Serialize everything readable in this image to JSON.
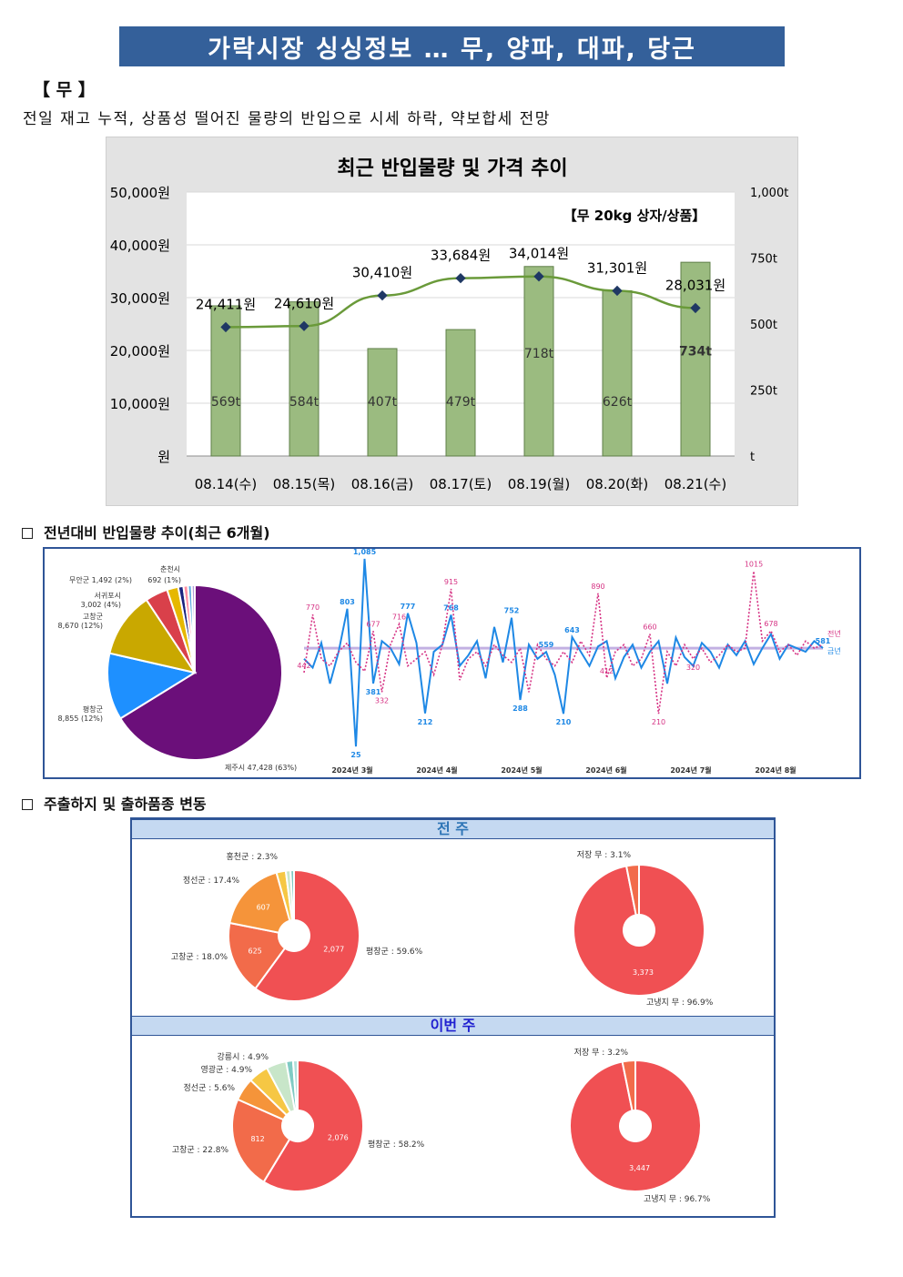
{
  "header": {
    "title": "가락시장 싱싱정보 … 무, 양파, 대파, 당근"
  },
  "section": {
    "tag": "【 무 】",
    "summary": "전일 재고 누적, 상품성 떨어진 물량의 반입으로 시세 하락, 약보합세 전망"
  },
  "chart_data": [
    {
      "type": "bar",
      "title": "최근 반입물량 및 가격 추이",
      "annotation": "【무 20kg 상자/상품】",
      "categories": [
        "08.14(수)",
        "08.15(목)",
        "08.16(금)",
        "08.17(토)",
        "08.19(월)",
        "08.20(화)",
        "08.21(수)"
      ],
      "series": [
        {
          "axis": "right",
          "type": "bar",
          "unit": "t",
          "values": [
            569,
            584,
            407,
            479,
            718,
            626,
            734
          ],
          "value_labels": [
            "569t",
            "584t",
            "407t",
            "479t",
            "718t",
            "626t",
            "734t"
          ]
        },
        {
          "axis": "left",
          "type": "line",
          "unit": "원",
          "values": [
            24411,
            24610,
            30410,
            33684,
            34014,
            31301,
            28031
          ],
          "value_labels": [
            "24,411원",
            "24,610원",
            "30,410원",
            "33,684원",
            "34,014원",
            "31,301원",
            "28,031원"
          ]
        }
      ],
      "left_axis": {
        "ylim": [
          0,
          50000
        ],
        "ticks": [
          "원",
          "10,000원",
          "20,000원",
          "30,000원",
          "40,000원",
          "50,000원"
        ]
      },
      "right_axis": {
        "ylim": [
          0,
          1000
        ],
        "ticks": [
          "t",
          "250t",
          "500t",
          "750t",
          "1,000t"
        ]
      },
      "colors": {
        "bar": "#9bbb80",
        "bar_border": "#5f7f48",
        "line": "#6a9a3a",
        "marker": "#1f3864"
      }
    },
    {
      "type": "pie",
      "slices": [
        {
          "label": "제주시 47,428 (63%)",
          "value": 47428,
          "color": "#6b0f7a"
        },
        {
          "label": "평창군 8,855 (12%)",
          "value": 8855,
          "color": "#1e90ff"
        },
        {
          "label": "고창군 8,670 (12%)",
          "value": 8670,
          "color": "#c9a800"
        },
        {
          "label": "서귀포시 3,002 (4%)",
          "value": 3002,
          "color": "#d9404a"
        },
        {
          "label": "무안군 1,492 (2%)",
          "value": 1492,
          "color": "#e6b800"
        },
        {
          "label": "692 (1%)",
          "value": 692,
          "color": "#1a237e"
        },
        {
          "label": "",
          "value": 600,
          "color": "#ff8fa3"
        },
        {
          "label": "",
          "value": 500,
          "color": "#5dade2"
        },
        {
          "label": "춘천시",
          "value": 400,
          "color": "#b39ddb"
        }
      ]
    },
    {
      "type": "line",
      "x_ticks": [
        "2024년 3월",
        "2024년 4월",
        "2024년 5월",
        "2024년 6월",
        "2024년 7월",
        "2024년 8월"
      ],
      "series": [
        {
          "name": "금년",
          "color": "#1e88e5",
          "style": "solid",
          "peak_labels": [
            "1,085",
            "803",
            "777",
            "768",
            "752",
            "559",
            "643",
            "25",
            "381",
            "212",
            "288",
            "210",
            "581"
          ],
          "values": [
            520,
            470,
            610,
            380,
            560,
            803,
            25,
            1085,
            381,
            620,
            580,
            490,
            777,
            610,
            212,
            560,
            600,
            768,
            480,
            540,
            620,
            410,
            700,
            500,
            752,
            288,
            600,
            520,
            559,
            430,
            210,
            643,
            560,
            480,
            590,
            620,
            410,
            530,
            600,
            470,
            560,
            620,
            380,
            640,
            530,
            480,
            610,
            560,
            470,
            600,
            540,
            620,
            490,
            580,
            660,
            520,
            600,
            580,
            560,
            620,
            581
          ]
        },
        {
          "name": "전년",
          "color": "#d63384",
          "style": "dotted",
          "peak_labels": [
            "770",
            "442",
            "677",
            "716",
            "915",
            "890",
            "660",
            "1015",
            "678",
            "320",
            "332",
            "412",
            "210"
          ],
          "values": [
            442,
            770,
            520,
            480,
            560,
            610,
            500,
            450,
            677,
            332,
            600,
            716,
            480,
            520,
            560,
            430,
            600,
            915,
            400,
            520,
            560,
            480,
            600,
            540,
            500,
            580,
            332,
            600,
            520,
            480,
            560,
            500,
            620,
            540,
            890,
            412,
            560,
            600,
            480,
            520,
            660,
            210,
            560,
            480,
            600,
            520,
            580,
            500,
            540,
            600,
            560,
            580,
            1015,
            620,
            678,
            560,
            600,
            540,
            620,
            580,
            600
          ]
        }
      ]
    },
    {
      "type": "pie",
      "group": "전 주",
      "chart": "origin",
      "slices": [
        {
          "label": "평창군 : 59.6%",
          "value": 2077,
          "inner": "2,077",
          "color": "#f05053"
        },
        {
          "label": "고창군 : 18.0%",
          "value": 625,
          "inner": "625",
          "color": "#f26b4a"
        },
        {
          "label": "정선군 : 17.4%",
          "value": 607,
          "inner": "607",
          "color": "#f5943a"
        },
        {
          "label": "홍천군 : 2.3%",
          "value": 80,
          "inner": "",
          "color": "#f6c744"
        },
        {
          "label": "",
          "value": 40,
          "inner": "",
          "color": "#c8e6c9"
        },
        {
          "label": "",
          "value": 30,
          "inner": "",
          "color": "#80cbc4"
        }
      ]
    },
    {
      "type": "pie",
      "group": "전 주",
      "chart": "variety",
      "slices": [
        {
          "label": "고냉지 무 : 96.9%",
          "value": 3373,
          "inner": "3,373",
          "color": "#f05053"
        },
        {
          "label": "저장 무 : 3.1%",
          "value": 108,
          "inner": "",
          "color": "#f26b4a"
        }
      ]
    },
    {
      "type": "pie",
      "group": "이번 주",
      "chart": "origin",
      "slices": [
        {
          "label": "평창군 : 58.2%",
          "value": 2076,
          "inner": "2,076",
          "color": "#f05053"
        },
        {
          "label": "고창군 : 22.8%",
          "value": 812,
          "inner": "812",
          "color": "#f26b4a"
        },
        {
          "label": "정선군 : 5.6%",
          "value": 200,
          "inner": "",
          "color": "#f5943a"
        },
        {
          "label": "영광군 : 4.9%",
          "value": 175,
          "inner": "",
          "color": "#f6c744"
        },
        {
          "label": "강릉시 : 4.9%",
          "value": 175,
          "inner": "",
          "color": "#c8e6c9"
        },
        {
          "label": "",
          "value": 60,
          "inner": "",
          "color": "#80cbc4"
        },
        {
          "label": "",
          "value": 40,
          "inner": "",
          "color": "#b2dfdb"
        }
      ]
    },
    {
      "type": "pie",
      "group": "이번 주",
      "chart": "variety",
      "slices": [
        {
          "label": "고냉지 무 : 96.7%",
          "value": 3447,
          "inner": "3,447",
          "color": "#f05053"
        },
        {
          "label": "저장 무 : 3.2%",
          "value": 114,
          "inner": "",
          "color": "#f26b4a"
        }
      ]
    }
  ],
  "trend": {
    "heading": "전년대비 반입물량 추이(최근 6개월)",
    "legend_prev": "전년",
    "legend_curr": "금년"
  },
  "shipping": {
    "heading": "주출하지 및 출하품종 변동",
    "last_week": "전 주",
    "this_week": "이번 주"
  }
}
